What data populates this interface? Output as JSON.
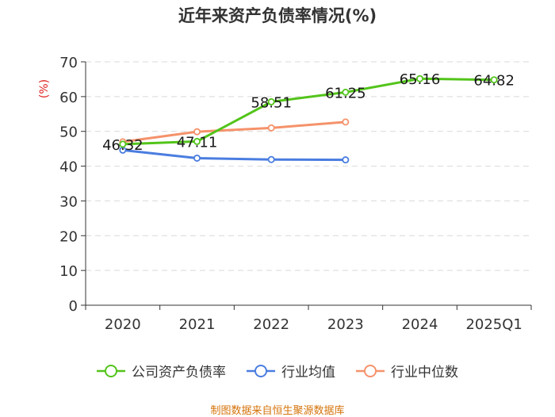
{
  "chart_data": {
    "type": "line",
    "title": "近年来资产负债率情况(%)",
    "ylabel": "(%)",
    "xlabel": "",
    "categories": [
      "2020",
      "2021",
      "2022",
      "2023",
      "2024",
      "2025Q1"
    ],
    "yticks": [
      "0",
      "10",
      "20",
      "30",
      "40",
      "50",
      "60",
      "70"
    ],
    "ylim": [
      0,
      70
    ],
    "series": [
      {
        "name": "公司资产负债率",
        "color": "#52c41a",
        "values": [
          46.32,
          47.11,
          58.51,
          61.25,
          65.16,
          64.82
        ],
        "labels": [
          "46.32",
          "47.11",
          "58.51",
          "61.25",
          "65.16",
          "64.82"
        ]
      },
      {
        "name": "行业均值",
        "color": "#4a7de0",
        "values": [
          44.6,
          42.3,
          41.9,
          41.8,
          null,
          null
        ]
      },
      {
        "name": "行业中位数",
        "color": "#f5926a",
        "values": [
          47.0,
          49.9,
          51.0,
          52.7,
          null,
          null
        ]
      }
    ],
    "source": "制图数据来自恒生聚源数据库"
  }
}
